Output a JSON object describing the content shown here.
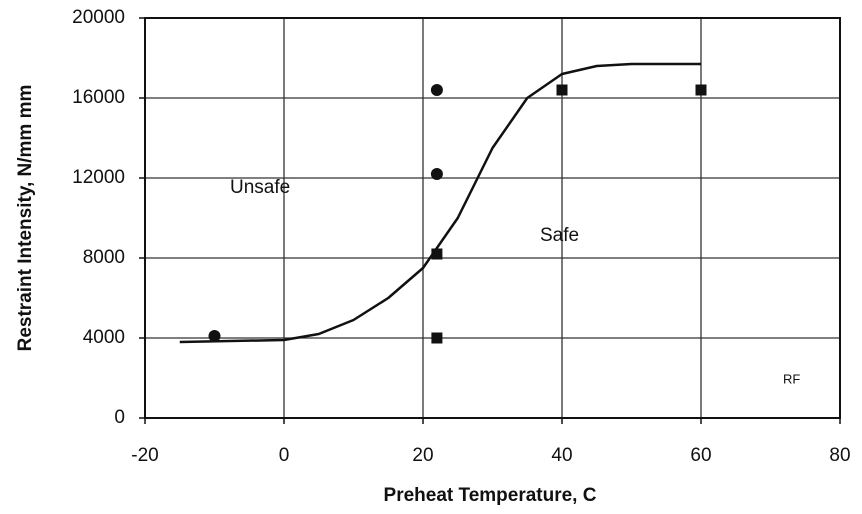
{
  "chart_data": {
    "type": "scatter",
    "xlabel": "Preheat Temperature, C",
    "ylabel": "Restraint Intensity, N/mm mm",
    "xlim": [
      -20,
      80
    ],
    "ylim": [
      0,
      20000
    ],
    "xticks": [
      -20,
      0,
      20,
      40,
      60,
      80
    ],
    "yticks": [
      0,
      4000,
      8000,
      12000,
      16000,
      20000
    ],
    "grid": true,
    "series": [
      {
        "type": "scatter",
        "marker": "circle",
        "color": "#111111",
        "x": [
          -10,
          22,
          22
        ],
        "values": [
          4100,
          12200,
          16400
        ]
      },
      {
        "type": "scatter",
        "marker": "square",
        "color": "#111111",
        "x": [
          22,
          22,
          40,
          60
        ],
        "values": [
          4000,
          8200,
          16400,
          16400
        ]
      },
      {
        "type": "line",
        "color": "#111111",
        "x": [
          -15,
          0,
          5,
          10,
          15,
          20,
          25,
          30,
          35,
          40,
          45,
          50,
          60
        ],
        "values": [
          3800,
          3900,
          4200,
          4900,
          6000,
          7500,
          10000,
          13500,
          16000,
          17200,
          17600,
          17700,
          17700
        ]
      }
    ],
    "annotations": [
      {
        "text": "Unsafe"
      },
      {
        "text": "Safe"
      },
      {
        "text": "RF"
      }
    ]
  }
}
